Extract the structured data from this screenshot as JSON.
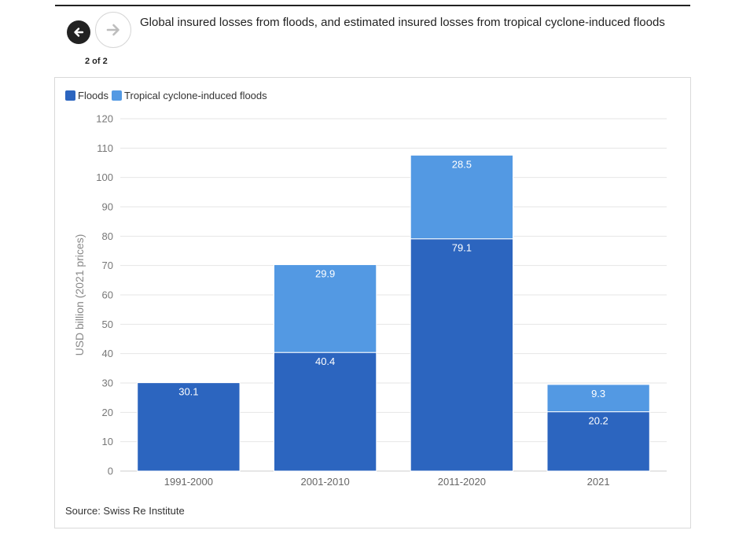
{
  "header": {
    "title": "Global insured losses from floods, and estimated insured losses from tropical cyclone-induced floods",
    "pager": "2 of 2",
    "prev_icon": "arrow-left-icon",
    "next_icon": "arrow-right-icon"
  },
  "footer": {
    "source": "Source: Swiss Re Institute"
  },
  "colors": {
    "floods": "#2c65bf",
    "tropical": "#5399e3",
    "grid": "#e6e6e6"
  },
  "chart_data": {
    "type": "bar",
    "stacked": true,
    "categories": [
      "1991-2000",
      "2001-2010",
      "2011-2020",
      "2021"
    ],
    "series": [
      {
        "name": "Floods",
        "values": [
          30.1,
          40.4,
          79.1,
          20.2
        ]
      },
      {
        "name": "Tropical cyclone-induced floods",
        "values": [
          null,
          29.9,
          28.5,
          9.3
        ]
      }
    ],
    "xlabel": "",
    "ylabel": "USD billion (2021 prices)",
    "ylim": [
      0,
      120
    ],
    "yticks": [
      0,
      10,
      20,
      30,
      40,
      50,
      60,
      70,
      80,
      90,
      100,
      110,
      120
    ],
    "grid": true,
    "legend": "top-left"
  }
}
